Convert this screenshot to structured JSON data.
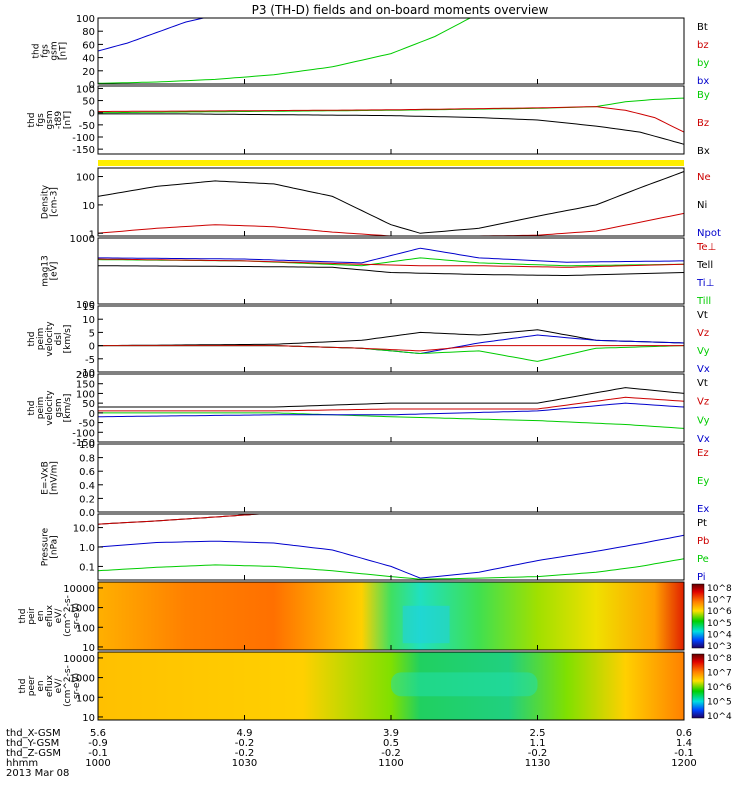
{
  "title": "P3 (TH-D) fields and on-board moments overview",
  "colors": {
    "black": "#000000",
    "red": "#cc0000",
    "green": "#00cc00",
    "blue": "#0000cc",
    "yellow": "#ffee00"
  },
  "footer": {
    "rows": [
      {
        "label": "thd_X-GSM",
        "values": [
          "5.6",
          "4.9",
          "3.9",
          "2.5",
          "0.6"
        ]
      },
      {
        "label": "thd_Y-GSM",
        "values": [
          "-0.9",
          "-0.2",
          "0.5",
          "1.1",
          "1.4"
        ]
      },
      {
        "label": "thd_Z-GSM",
        "values": [
          "-0.1",
          "-0.2",
          "-0.2",
          "-0.2",
          "-0.1"
        ]
      },
      {
        "label": "hhmm",
        "values": [
          "1000",
          "1030",
          "1100",
          "1130",
          "1200"
        ]
      }
    ],
    "date": "2013 Mar 08"
  },
  "chart_data": [
    {
      "type": "line",
      "ylabel": [
        "thd",
        "fgs",
        "gsm",
        "[nT]"
      ],
      "ylim": [
        0,
        100
      ],
      "yticks": [
        "100",
        "80",
        "60",
        "40",
        "20",
        "0"
      ],
      "legend": [
        {
          "name": "Bt",
          "color": "black"
        },
        {
          "name": "bz",
          "color": "red"
        },
        {
          "name": "by",
          "color": "green"
        },
        {
          "name": "bx",
          "color": "blue"
        }
      ],
      "series": [
        {
          "name": "bx",
          "color": "blue",
          "x": [
            1000,
            1010,
            1020,
            1030,
            1036
          ],
          "y": [
            50,
            62,
            78,
            94,
            100
          ]
        },
        {
          "name": "by",
          "color": "green",
          "x": [
            1000,
            1020,
            1040,
            1060,
            1080,
            1100,
            1115,
            1127
          ],
          "y": [
            1,
            3,
            7,
            14,
            26,
            46,
            72,
            100
          ]
        },
        {
          "name": "bz",
          "color": "red",
          "x": [
            1000,
            1200
          ],
          "y": [
            0,
            0
          ]
        }
      ]
    },
    {
      "type": "line",
      "ylabel": [
        "thd",
        "fgs",
        "gsm",
        "-t89",
        "[nT]"
      ],
      "ylim": [
        -170,
        110
      ],
      "yticks": [
        "100",
        "50",
        "0",
        "-50",
        "-100",
        "-150"
      ],
      "legend": [
        {
          "name": "By",
          "color": "green"
        },
        {
          "name": "Bz",
          "color": "red"
        },
        {
          "name": "Bx",
          "color": "black"
        }
      ],
      "series": [
        {
          "name": "By",
          "color": "green",
          "x": [
            1000,
            1050,
            1100,
            1150,
            1170,
            1180,
            1190,
            1200
          ],
          "y": [
            0,
            5,
            10,
            18,
            25,
            45,
            55,
            60
          ]
        },
        {
          "name": "Bz",
          "color": "red",
          "x": [
            1000,
            1050,
            1100,
            1150,
            1170,
            1180,
            1190,
            1200
          ],
          "y": [
            5,
            8,
            12,
            20,
            25,
            10,
            -20,
            -80
          ]
        },
        {
          "name": "Bx",
          "color": "black",
          "x": [
            1000,
            1030,
            1060,
            1100,
            1130,
            1150,
            1170,
            1185,
            1200
          ],
          "y": [
            -5,
            -5,
            -8,
            -12,
            -20,
            -30,
            -55,
            -80,
            -130
          ]
        }
      ]
    },
    {
      "type": "line",
      "ylabel": [
        "Density",
        "[cm-3]"
      ],
      "ylim": [
        0.8,
        200
      ],
      "scale": "log",
      "yticks": [
        "100",
        "10",
        "1"
      ],
      "legend": [
        {
          "name": "Ne",
          "color": "red"
        },
        {
          "name": "Ni",
          "color": "black"
        },
        {
          "name": "Npot",
          "color": "blue"
        }
      ],
      "series": [
        {
          "name": "Ni",
          "color": "black",
          "x": [
            1000,
            1020,
            1040,
            1060,
            1080,
            1100,
            1110,
            1130,
            1150,
            1170,
            1185,
            1200
          ],
          "y": [
            20,
            45,
            70,
            55,
            20,
            2,
            1,
            1.5,
            4,
            10,
            40,
            150
          ]
        },
        {
          "name": "Ne",
          "color": "red",
          "x": [
            1000,
            1020,
            1040,
            1060,
            1080,
            1100,
            1110,
            1130,
            1150,
            1170,
            1200
          ],
          "y": [
            1,
            1.5,
            2,
            1.7,
            1.1,
            0.8,
            0.8,
            0.8,
            0.85,
            1.2,
            5
          ]
        }
      ]
    },
    {
      "type": "line",
      "ylabel": [
        "mag13",
        "[eV]"
      ],
      "ylim": [
        100,
        1000
      ],
      "scale": "log",
      "yticks": [
        "1000",
        "100"
      ],
      "legend": [
        {
          "name": "Te⊥",
          "color": "red"
        },
        {
          "name": "Tell",
          "color": "black"
        },
        {
          "name": "Ti⊥",
          "color": "blue"
        },
        {
          "name": "Till",
          "color": "green"
        }
      ],
      "series": [
        {
          "name": "Ti⊥",
          "color": "blue",
          "x": [
            1000,
            1050,
            1090,
            1110,
            1130,
            1160,
            1200
          ],
          "y": [
            500,
            480,
            420,
            700,
            500,
            430,
            450
          ]
        },
        {
          "name": "Till",
          "color": "green",
          "x": [
            1000,
            1050,
            1090,
            1110,
            1130,
            1160,
            1200
          ],
          "y": [
            470,
            450,
            380,
            500,
            420,
            380,
            400
          ]
        },
        {
          "name": "Te⊥",
          "color": "red",
          "x": [
            1000,
            1050,
            1090,
            1110,
            1130,
            1160,
            1200
          ],
          "y": [
            480,
            450,
            400,
            380,
            380,
            360,
            400
          ]
        },
        {
          "name": "Tell",
          "color": "black",
          "x": [
            1000,
            1050,
            1080,
            1100,
            1130,
            1160,
            1200
          ],
          "y": [
            380,
            370,
            360,
            300,
            280,
            270,
            300
          ]
        }
      ]
    },
    {
      "type": "line",
      "ylabel": [
        "thd",
        "peim",
        "velocity",
        "dsl",
        "[km/s]"
      ],
      "ylim": [
        -10,
        15
      ],
      "yticks": [
        "15",
        "10",
        "5",
        "0",
        "-5",
        "-10"
      ],
      "legend": [
        {
          "name": "Vt",
          "color": "black"
        },
        {
          "name": "Vz",
          "color": "red"
        },
        {
          "name": "Vy",
          "color": "green"
        },
        {
          "name": "Vx",
          "color": "blue"
        }
      ],
      "series": [
        {
          "name": "Vt",
          "color": "black",
          "x": [
            1000,
            1060,
            1090,
            1110,
            1130,
            1150,
            1170,
            1200
          ],
          "y": [
            0,
            0.5,
            2,
            5,
            4,
            6,
            2,
            1
          ]
        },
        {
          "name": "Vx",
          "color": "blue",
          "x": [
            1000,
            1060,
            1090,
            1110,
            1130,
            1150,
            1170,
            1200
          ],
          "y": [
            0,
            0,
            -1,
            -3,
            1,
            4,
            2,
            1
          ]
        },
        {
          "name": "Vy",
          "color": "green",
          "x": [
            1000,
            1060,
            1090,
            1110,
            1130,
            1150,
            1170,
            1200
          ],
          "y": [
            0,
            0,
            -1,
            -3,
            -2,
            -6,
            -1,
            0
          ]
        },
        {
          "name": "Vz",
          "color": "red",
          "x": [
            1000,
            1060,
            1090,
            1110,
            1130,
            1150,
            1170,
            1200
          ],
          "y": [
            0,
            0,
            -1,
            -2,
            0,
            0,
            0,
            0
          ]
        }
      ]
    },
    {
      "type": "line",
      "ylabel": [
        "thd",
        "peim",
        "velocity",
        "gsm",
        "[km/s]"
      ],
      "ylim": [
        -150,
        200
      ],
      "yticks": [
        "200",
        "150",
        "100",
        "50",
        "0",
        "-50",
        "-100",
        "-150"
      ],
      "legend": [
        {
          "name": "Vt",
          "color": "black"
        },
        {
          "name": "Vz",
          "color": "red"
        },
        {
          "name": "Vy",
          "color": "green"
        },
        {
          "name": "Vx",
          "color": "blue"
        }
      ],
      "series": [
        {
          "name": "Vt",
          "color": "black",
          "x": [
            1000,
            1060,
            1100,
            1150,
            1180,
            1200
          ],
          "y": [
            30,
            30,
            50,
            50,
            130,
            100
          ]
        },
        {
          "name": "Vz",
          "color": "red",
          "x": [
            1000,
            1060,
            1100,
            1150,
            1180,
            1200
          ],
          "y": [
            10,
            10,
            20,
            20,
            80,
            60
          ]
        },
        {
          "name": "Vy",
          "color": "green",
          "x": [
            1000,
            1060,
            1100,
            1150,
            1180,
            1200
          ],
          "y": [
            0,
            0,
            -20,
            -40,
            -60,
            -80
          ]
        },
        {
          "name": "Vx",
          "color": "blue",
          "x": [
            1000,
            1060,
            1100,
            1150,
            1180,
            1200
          ],
          "y": [
            -20,
            -10,
            -10,
            10,
            50,
            30
          ]
        }
      ]
    },
    {
      "type": "line",
      "ylabel": [
        "E=-VxB",
        "[mV/m]"
      ],
      "ylim": [
        0,
        1
      ],
      "yticks": [
        "1.0",
        "0.8",
        "0.6",
        "0.4",
        "0.2",
        "0.0"
      ],
      "legend": [
        {
          "name": "Ez",
          "color": "red"
        },
        {
          "name": "Ey",
          "color": "green"
        },
        {
          "name": "Ex",
          "color": "blue"
        }
      ],
      "series": []
    },
    {
      "type": "line",
      "ylabel": [
        "Pressure",
        "[nPa]"
      ],
      "ylim": [
        0.02,
        50
      ],
      "scale": "log",
      "yticks": [
        "10.0",
        "1.0",
        "0.1"
      ],
      "legend": [
        {
          "name": "Pt",
          "color": "black"
        },
        {
          "name": "Pb",
          "color": "red"
        },
        {
          "name": "Pe",
          "color": "green"
        },
        {
          "name": "Pi",
          "color": "blue"
        }
      ],
      "series": [
        {
          "name": "Pt",
          "color": "black",
          "x": [
            1000,
            1020,
            1040,
            1055
          ],
          "y": [
            15,
            22,
            35,
            50
          ]
        },
        {
          "name": "Pb",
          "color": "red",
          "x": [
            1000,
            1020,
            1040,
            1055
          ],
          "y": [
            15,
            22,
            35,
            50
          ]
        },
        {
          "name": "Pi",
          "color": "blue",
          "x": [
            1000,
            1020,
            1040,
            1060,
            1080,
            1100,
            1110,
            1130,
            1150,
            1170,
            1185,
            1200
          ],
          "y": [
            1,
            1.7,
            2,
            1.6,
            0.7,
            0.1,
            0.025,
            0.05,
            0.2,
            0.6,
            1.5,
            4
          ]
        },
        {
          "name": "Pe",
          "color": "green",
          "x": [
            1000,
            1020,
            1040,
            1060,
            1080,
            1100,
            1110,
            1130,
            1150,
            1170,
            1185,
            1200
          ],
          "y": [
            0.06,
            0.09,
            0.12,
            0.1,
            0.06,
            0.03,
            0.022,
            0.025,
            0.03,
            0.05,
            0.1,
            0.25
          ]
        }
      ]
    },
    {
      "type": "heatmap",
      "ylabel": [
        "thd",
        "peir",
        "en",
        "eflux",
        "eV/",
        "(cm^2-s-",
        "sr-eV)"
      ],
      "ylim": [
        7,
        20000
      ],
      "scale": "log",
      "yticks": [
        "10000",
        "1000",
        "100",
        "10"
      ],
      "colorbar": {
        "ticks": [
          "10^8",
          "10^7",
          "10^6",
          "10^5",
          "10^4",
          "10^3"
        ]
      }
    },
    {
      "type": "heatmap",
      "ylabel": [
        "thd",
        "peer",
        "en",
        "eflux",
        "eV/",
        "(cm^2-s-",
        "sr-eV)"
      ],
      "ylim": [
        7,
        20000
      ],
      "scale": "log",
      "yticks": [
        "10000",
        "1000",
        "100",
        "10"
      ],
      "colorbar": {
        "ticks": [
          "10^8",
          "10^7",
          "10^6",
          "10^5",
          "10^4"
        ]
      }
    }
  ]
}
